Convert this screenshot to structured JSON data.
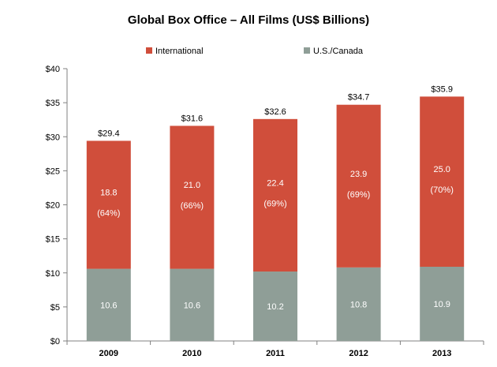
{
  "chart_data": {
    "type": "bar",
    "stacked": true,
    "title": "Global Box Office – All Films (US$ Billions)",
    "categories": [
      "2009",
      "2010",
      "2011",
      "2012",
      "2013"
    ],
    "series": [
      {
        "name": "U.S./Canada",
        "color": "#8f9e97",
        "values": [
          10.6,
          10.6,
          10.2,
          10.8,
          10.9
        ],
        "labels": [
          "10.6",
          "10.6",
          "10.2",
          "10.8",
          "10.9"
        ]
      },
      {
        "name": "International",
        "color": "#d04e3b",
        "values": [
          18.8,
          21.0,
          22.4,
          23.9,
          25.0
        ],
        "labels": [
          "18.8",
          "21.0",
          "22.4",
          "23.9",
          "25.0"
        ],
        "share_labels": [
          "(64%)",
          "(66%)",
          "(69%)",
          "(69%)",
          "(70%)"
        ]
      }
    ],
    "totals": [
      "$29.4",
      "$31.6",
      "$32.6",
      "$34.7",
      "$35.9"
    ],
    "ylim": [
      0,
      40
    ],
    "yticks": [
      0,
      5,
      10,
      15,
      20,
      25,
      30,
      35,
      40
    ],
    "ytick_labels": [
      "$0",
      "$5",
      "$10",
      "$15",
      "$20",
      "$25",
      "$30",
      "$35",
      "$40"
    ],
    "xlabel": "",
    "ylabel": "",
    "grid": false,
    "legend_position": "top",
    "legend_order": [
      "International",
      "U.S./Canada"
    ]
  }
}
